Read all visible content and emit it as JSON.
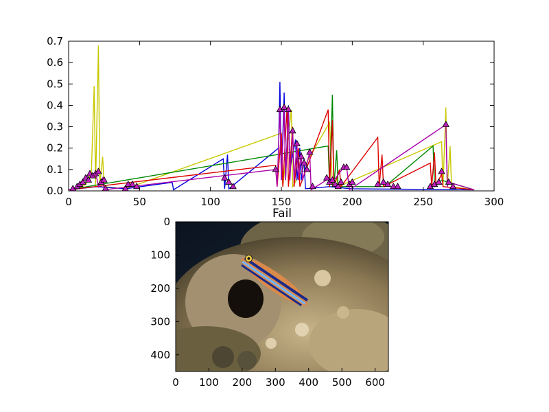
{
  "chart_data": [
    {
      "type": "line",
      "xlim": [
        0,
        300
      ],
      "ylim": [
        0,
        0.7
      ],
      "x_ticks": [
        "0",
        "50",
        "100",
        "150",
        "200",
        "250",
        "300"
      ],
      "y_ticks": [
        "0.0",
        "0.1",
        "0.2",
        "0.3",
        "0.4",
        "0.5",
        "0.6",
        "0.7"
      ],
      "marker": "triangle",
      "marker_color": "#c020c0",
      "grid": false,
      "series": [
        {
          "color": "#c8c800",
          "points": [
            [
              0,
              0.005
            ],
            [
              6,
              0.01
            ],
            [
              12,
              0.03
            ],
            [
              16,
              0.08
            ],
            [
              18,
              0.49
            ],
            [
              19,
              0.02
            ],
            [
              21,
              0.68
            ],
            [
              22,
              0.03
            ],
            [
              24,
              0.16
            ],
            [
              25,
              0.02
            ],
            [
              40,
              0.01
            ],
            [
              150,
              0.27
            ],
            [
              151,
              0.02
            ],
            [
              157,
              0.38
            ],
            [
              158,
              0.02
            ],
            [
              184,
              0.32
            ],
            [
              186,
              0.02
            ],
            [
              189,
              0.06
            ],
            [
              190,
              0.02
            ],
            [
              263,
              0.23
            ],
            [
              264,
              0.02
            ],
            [
              266,
              0.39
            ],
            [
              267,
              0.02
            ],
            [
              269,
              0.21
            ],
            [
              270,
              0.02
            ],
            [
              286,
              0.005
            ]
          ]
        },
        {
          "color": "#0000dd",
          "points": [
            [
              0,
              0.005
            ],
            [
              20,
              0.02
            ],
            [
              40,
              0.01
            ],
            [
              73,
              0.04
            ],
            [
              74,
              0.005
            ],
            [
              109,
              0.15
            ],
            [
              110,
              0.01
            ],
            [
              112,
              0.17
            ],
            [
              113,
              0.01
            ],
            [
              148,
              0.2
            ],
            [
              149,
              0.51
            ],
            [
              150,
              0.05
            ],
            [
              152,
              0.46
            ],
            [
              153,
              0.05
            ],
            [
              155,
              0.4
            ],
            [
              156,
              0.1
            ],
            [
              160,
              0.24
            ],
            [
              161,
              0.05
            ],
            [
              163,
              0.2
            ],
            [
              164,
              0.05
            ],
            [
              166,
              0.15
            ],
            [
              167,
              0.01
            ],
            [
              184,
              0.02
            ],
            [
              199,
              0.01
            ],
            [
              286,
              0.005
            ]
          ]
        },
        {
          "color": "#008800",
          "points": [
            [
              0,
              0.005
            ],
            [
              183,
              0.21
            ],
            [
              184,
              0.02
            ],
            [
              186,
              0.45
            ],
            [
              187,
              0.02
            ],
            [
              189,
              0.19
            ],
            [
              190,
              0.02
            ],
            [
              223,
              0.02
            ],
            [
              257,
              0.21
            ],
            [
              258,
              0.02
            ],
            [
              263,
              0.05
            ],
            [
              286,
              0.005
            ]
          ]
        },
        {
          "color": "#dd0000",
          "points": [
            [
              0,
              0.005
            ],
            [
              146,
              0.12
            ],
            [
              147,
              0.02
            ],
            [
              150,
              0.27
            ],
            [
              151,
              0.02
            ],
            [
              154,
              0.39
            ],
            [
              155,
              0.02
            ],
            [
              158,
              0.3
            ],
            [
              159,
              0.02
            ],
            [
              162,
              0.2
            ],
            [
              163,
              0.02
            ],
            [
              183,
              0.38
            ],
            [
              184,
              0.02
            ],
            [
              186,
              0.33
            ],
            [
              187,
              0.02
            ],
            [
              191,
              0.1
            ],
            [
              192,
              0.02
            ],
            [
              218,
              0.25
            ],
            [
              219,
              0.02
            ],
            [
              221,
              0.17
            ],
            [
              222,
              0.02
            ],
            [
              255,
              0.13
            ],
            [
              256,
              0.02
            ],
            [
              258,
              0.18
            ],
            [
              259,
              0.02
            ],
            [
              263,
              0.08
            ],
            [
              264,
              0.02
            ],
            [
              286,
              0.005
            ]
          ]
        },
        {
          "color": "#aa00aa",
          "points": [
            [
              0,
              0.005
            ],
            [
              8,
              0.02
            ],
            [
              12,
              0.06
            ],
            [
              15,
              0.08
            ],
            [
              17,
              0.07
            ],
            [
              19,
              0.09
            ],
            [
              21,
              0.02
            ],
            [
              24,
              0.06
            ],
            [
              25,
              0.005
            ],
            [
              146,
              0.1
            ],
            [
              147,
              0.02
            ],
            [
              149,
              0.38
            ],
            [
              150,
              0.05
            ],
            [
              152,
              0.39
            ],
            [
              153,
              0.05
            ],
            [
              155,
              0.38
            ],
            [
              156,
              0.05
            ],
            [
              158,
              0.28
            ],
            [
              159,
              0.05
            ],
            [
              161,
              0.22
            ],
            [
              162,
              0.05
            ],
            [
              164,
              0.18
            ],
            [
              165,
              0.05
            ],
            [
              170,
              0.18
            ],
            [
              171,
              0.005
            ],
            [
              184,
              0.06
            ],
            [
              186,
              0.04
            ],
            [
              194,
              0.11
            ],
            [
              196,
              0.11
            ],
            [
              198,
              0.005
            ],
            [
              266,
              0.31
            ],
            [
              267,
              0.02
            ],
            [
              268,
              0.04
            ],
            [
              286,
              0.005
            ]
          ]
        }
      ],
      "markers": [
        [
          3,
          0.01
        ],
        [
          6,
          0.02
        ],
        [
          8,
          0.03
        ],
        [
          10,
          0.04
        ],
        [
          12,
          0.06
        ],
        [
          14,
          0.05
        ],
        [
          15,
          0.08
        ],
        [
          17,
          0.07
        ],
        [
          19,
          0.08
        ],
        [
          21,
          0.09
        ],
        [
          23,
          0.04
        ],
        [
          25,
          0.05
        ],
        [
          26,
          0.01
        ],
        [
          40,
          0.01
        ],
        [
          42,
          0.03
        ],
        [
          45,
          0.03
        ],
        [
          48,
          0.02
        ],
        [
          110,
          0.06
        ],
        [
          113,
          0.04
        ],
        [
          116,
          0.02
        ],
        [
          146,
          0.1
        ],
        [
          149,
          0.38
        ],
        [
          152,
          0.39
        ],
        [
          155,
          0.38
        ],
        [
          158,
          0.28
        ],
        [
          161,
          0.22
        ],
        [
          164,
          0.16
        ],
        [
          166,
          0.13
        ],
        [
          168,
          0.1
        ],
        [
          170,
          0.18
        ],
        [
          172,
          0.02
        ],
        [
          182,
          0.06
        ],
        [
          184,
          0.04
        ],
        [
          186,
          0.05
        ],
        [
          188,
          0.03
        ],
        [
          190,
          0.02
        ],
        [
          192,
          0.04
        ],
        [
          194,
          0.11
        ],
        [
          196,
          0.11
        ],
        [
          198,
          0.03
        ],
        [
          200,
          0.04
        ],
        [
          218,
          0.03
        ],
        [
          222,
          0.04
        ],
        [
          225,
          0.03
        ],
        [
          229,
          0.02
        ],
        [
          232,
          0.02
        ],
        [
          255,
          0.02
        ],
        [
          258,
          0.03
        ],
        [
          261,
          0.04
        ],
        [
          263,
          0.09
        ],
        [
          266,
          0.31
        ],
        [
          268,
          0.04
        ],
        [
          271,
          0.02
        ]
      ]
    },
    {
      "type": "image",
      "title": "Fail",
      "xlim": [
        0,
        640
      ],
      "ylim": [
        450,
        0
      ],
      "x_ticks": [
        "0",
        "100",
        "200",
        "300",
        "400",
        "500",
        "600"
      ],
      "y_ticks": [
        "0",
        "100",
        "200",
        "300",
        "400"
      ]
    }
  ]
}
